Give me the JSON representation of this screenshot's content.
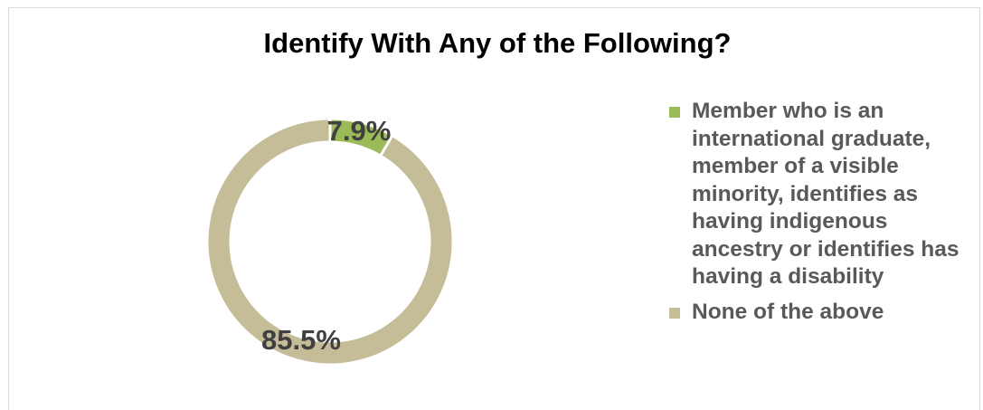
{
  "colors": {
    "member": "#9bbb59",
    "none": "#c4bd97",
    "label_text": "#404040",
    "legend_text": "#595959",
    "separator": "#ffffff"
  },
  "chart_data": {
    "type": "donut",
    "title": "Identify With Any of the Following?",
    "slices": [
      {
        "label": "Member who is an international graduate, member of a visible minority, identifies as having indigenous ancestry or identifies has having a disability",
        "value": 7.9,
        "data_label": "7.9%",
        "color": "#9bbb59"
      },
      {
        "label": "None of the above",
        "value": 85.5,
        "data_label": "85.5%",
        "color": "#c4bd97"
      }
    ],
    "legend_position": "right"
  }
}
